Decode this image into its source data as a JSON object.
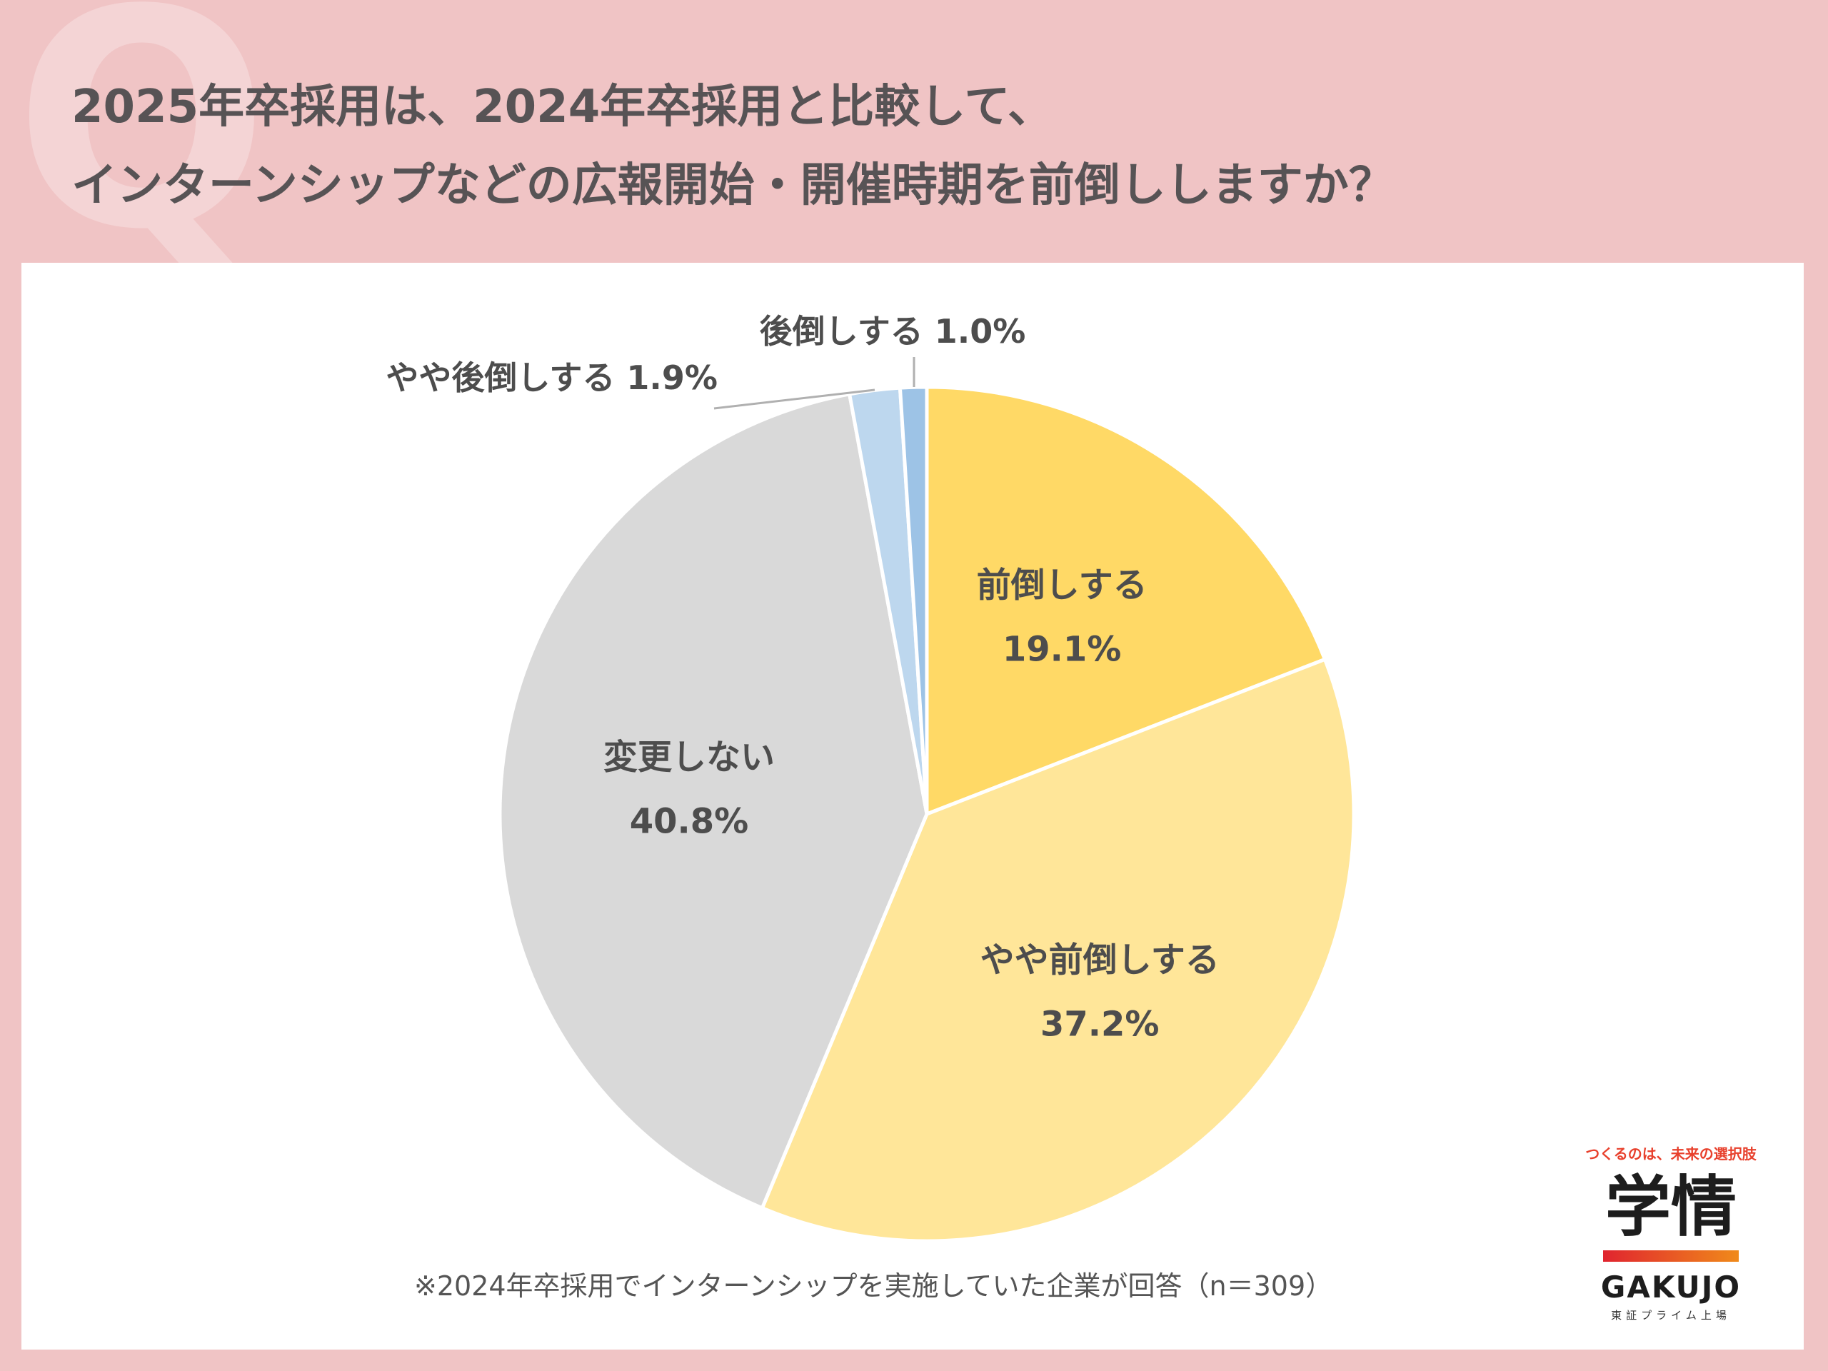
{
  "header": {
    "title_line1": "2025年卒採用は、2024年卒採用と比較して、",
    "title_line2": "インターンシップなどの広報開始・開催時期を前倒ししますか？"
  },
  "chart_data": {
    "type": "pie",
    "title": "2025年卒採用は、2024年卒採用と比較して、インターンシップなどの広報開始・開催時期を前倒ししますか？",
    "slices": [
      {
        "label": "前倒しする",
        "value": 19.1,
        "value_text": "19.1%",
        "color": "#ffd966"
      },
      {
        "label": "やや前倒しする",
        "value": 37.2,
        "value_text": "37.2%",
        "color": "#ffe699"
      },
      {
        "label": "変更しない",
        "value": 40.8,
        "value_text": "40.8%",
        "color": "#d9d9d9"
      },
      {
        "label": "やや後倒しする",
        "value": 1.9,
        "value_text": "1.9%",
        "color": "#bdd7ee"
      },
      {
        "label": "後倒しする",
        "value": 1.0,
        "value_text": "1.0%",
        "color": "#9dc3e6"
      }
    ],
    "start": "12 o'clock",
    "direction": "clockwise"
  },
  "footnote": "※2024年卒採用でインターンシップを実施していた企業が回答（n＝309）",
  "logo": {
    "tagline": "つくるのは、未来の選択肢",
    "mark": "学情",
    "brand": "GAKUJO",
    "sub": "東証プライム上場"
  }
}
